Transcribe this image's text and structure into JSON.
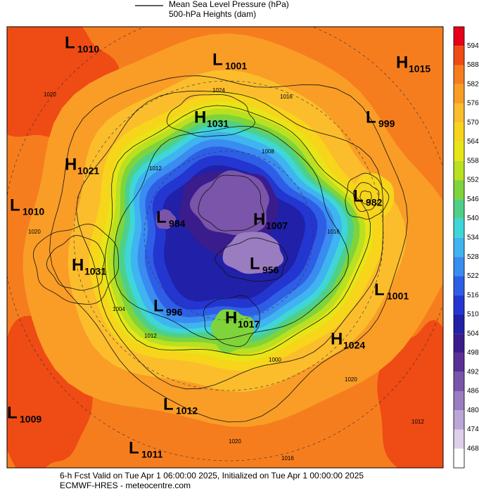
{
  "legend": {
    "items": [
      "Mean Sea Level Pressure (hPa)",
      "500-hPa Heights (dam)"
    ]
  },
  "colorbar": {
    "labels": [
      594,
      588,
      582,
      576,
      570,
      564,
      558,
      552,
      546,
      540,
      534,
      528,
      522,
      516,
      510,
      504,
      498,
      492,
      486,
      480,
      474,
      468
    ],
    "colors": [
      "#e60019",
      "#ef4b14",
      "#f67d1e",
      "#f99d27",
      "#fbbd2c",
      "#f6d51b",
      "#e6e617",
      "#b9e021",
      "#7ed43a",
      "#4fd08a",
      "#3fd6d8",
      "#3fb4f0",
      "#3a8cf0",
      "#2e5ee6",
      "#2436d0",
      "#2020a8",
      "#3a1c8c",
      "#5a3096",
      "#7a55aa",
      "#9a7cc0",
      "#bca6d6",
      "#ddd0ea",
      "#ffffff"
    ]
  },
  "centers": [
    {
      "letter": "L",
      "value": 1010
    },
    {
      "letter": "L",
      "value": 1001
    },
    {
      "letter": "H",
      "value": 1015
    },
    {
      "letter": "H",
      "value": 1031
    },
    {
      "letter": "L",
      "value": 999
    },
    {
      "letter": "H",
      "value": 1021
    },
    {
      "letter": "L",
      "value": 982
    },
    {
      "letter": "L",
      "value": 1010
    },
    {
      "letter": "L",
      "value": 984
    },
    {
      "letter": "H",
      "value": 1007
    },
    {
      "letter": "H",
      "value": 1031
    },
    {
      "letter": "L",
      "value": 956
    },
    {
      "letter": "L",
      "value": 1001
    },
    {
      "letter": "L",
      "value": 996
    },
    {
      "letter": "H",
      "value": 1017
    },
    {
      "letter": "H",
      "value": 1024
    },
    {
      "letter": "L",
      "value": 1012
    },
    {
      "letter": "L",
      "value": 1009
    },
    {
      "letter": "L",
      "value": 1011
    }
  ],
  "contour_labels": [
    1020,
    1024,
    1016,
    1012,
    1020,
    1008,
    1000,
    1004,
    1012,
    1020,
    1016,
    1012,
    1020,
    1016
  ],
  "footer": {
    "line1": "6-h Fcst Valid on Tue Apr  1 06:00:00 2025, Initialized on Tue Apr  1 00:00:00 2025",
    "line2": "ECMWF-HRES - meteocentre.com"
  }
}
